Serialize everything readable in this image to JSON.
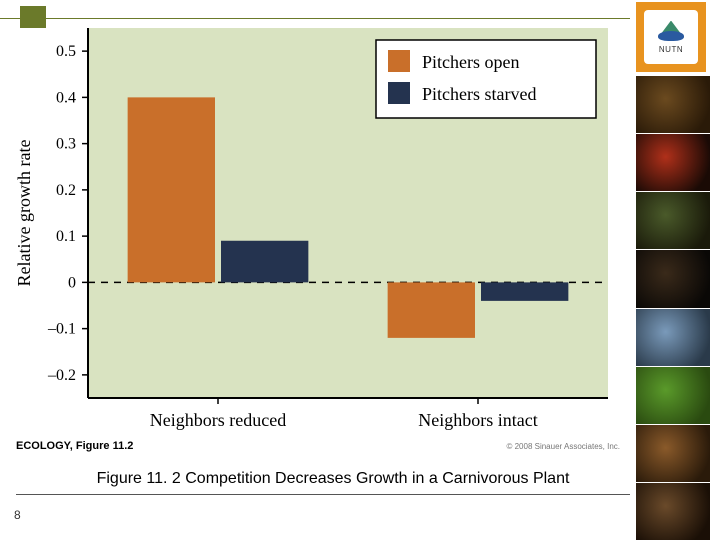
{
  "logo": {
    "label": "NUTN"
  },
  "chart": {
    "type": "bar",
    "ylabel": "Relative growth rate",
    "ylabel_fontsize": 18,
    "ylim": [
      -0.25,
      0.55
    ],
    "yticks": [
      -0.2,
      -0.1,
      0,
      0.1,
      0.2,
      0.3,
      0.4,
      0.5
    ],
    "ytick_labels": [
      "–0.2",
      "–0.1",
      "0",
      "0.1",
      "0.2",
      "0.3",
      "0.4",
      "0.5"
    ],
    "zero_line": {
      "style": "dashed",
      "color": "#000000",
      "width": 1.5
    },
    "categories": [
      "Neighbors reduced",
      "Neighbors intact"
    ],
    "category_fontsize": 18,
    "series": [
      {
        "name": "Pitchers open",
        "color": "#c96f2a"
      },
      {
        "name": "Pitchers starved",
        "color": "#24334f"
      }
    ],
    "groups": [
      {
        "label": "Neighbors reduced",
        "values": [
          0.4,
          0.09
        ]
      },
      {
        "label": "Neighbors intact",
        "values": [
          -0.12,
          -0.04
        ]
      }
    ],
    "bar_width": 0.42,
    "plot_background": "#d9e3c1",
    "legend": {
      "position": "top-right",
      "border_color": "#000000",
      "fill": "#ffffff",
      "fontsize": 18,
      "swatch_size": 22
    },
    "axis_color": "#000000",
    "tick_fontsize": 16,
    "tick_color": "#000000",
    "tick_len": 6
  },
  "source": {
    "left": "ECOLOGY, Figure 11.2",
    "right": "© 2008 Sinauer Associates, Inc."
  },
  "caption": "Figure 11. 2  Competition Decreases Growth in a Carnivorous Plant",
  "page_number": "8",
  "photo_strip": {
    "count": 8,
    "gradients": [
      [
        "#6b4a1f",
        "#2a1a08"
      ],
      [
        "#b0301a",
        "#1a0a05"
      ],
      [
        "#4a5a2a",
        "#1a1a0a"
      ],
      [
        "#3a2a1a",
        "#0a0806"
      ],
      [
        "#7a9aba",
        "#2a3a4a"
      ],
      [
        "#5a9a2a",
        "#2a4a10"
      ],
      [
        "#8a5a2a",
        "#2a1a0a"
      ],
      [
        "#6a4a2a",
        "#1a0f06"
      ]
    ]
  }
}
